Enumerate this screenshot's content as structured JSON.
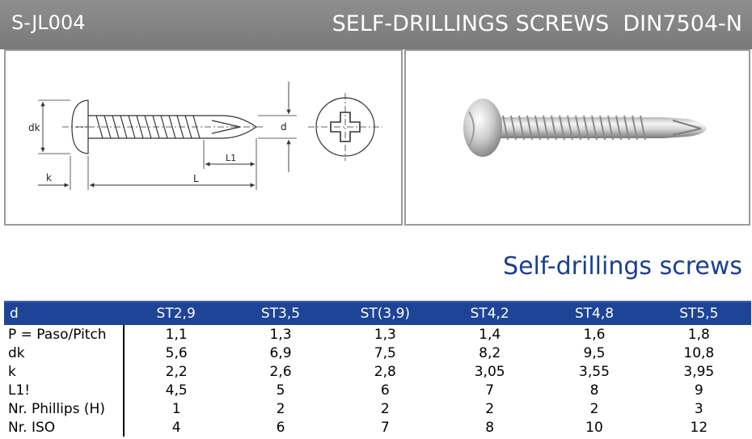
{
  "header": {
    "code": "S-JL004",
    "title": "SELF-DRILLINGS SCREWS  DIN7504-N"
  },
  "drawing": {
    "labels": {
      "dk": "dk",
      "d": "d",
      "k": "k",
      "L": "L",
      "L1": "L1"
    }
  },
  "section_title": "Self-drillings screws",
  "table": {
    "headers": [
      "d",
      "ST2,9",
      "ST3,5",
      "ST(3,9)",
      "ST4,2",
      "ST4,8",
      "ST5,5"
    ],
    "rows": [
      {
        "label": "P = Paso/Pitch",
        "values": [
          "1,1",
          "1,3",
          "1,3",
          "1,4",
          "1,6",
          "1,8"
        ]
      },
      {
        "label": "dk",
        "values": [
          "5,6",
          "6,9",
          "7,5",
          "8,2",
          "9,5",
          "10,8"
        ]
      },
      {
        "label": "k",
        "values": [
          "2,2",
          "2,6",
          "2,8",
          "3,05",
          "3,55",
          "3,95"
        ]
      },
      {
        "label": "L1!",
        "values": [
          "4,5",
          "5",
          "6",
          "7",
          "8",
          "9"
        ]
      },
      {
        "label": "Nr. Phillips (H)",
        "values": [
          "1",
          "2",
          "2",
          "2",
          "2",
          "3"
        ]
      },
      {
        "label": "Nr. ISO",
        "values": [
          "4",
          "6",
          "7",
          "8",
          "10",
          "12"
        ]
      }
    ]
  },
  "colors": {
    "header_bar": "#8a8a8a",
    "table_header": "#1d4497",
    "section_title": "#1a3e93"
  }
}
